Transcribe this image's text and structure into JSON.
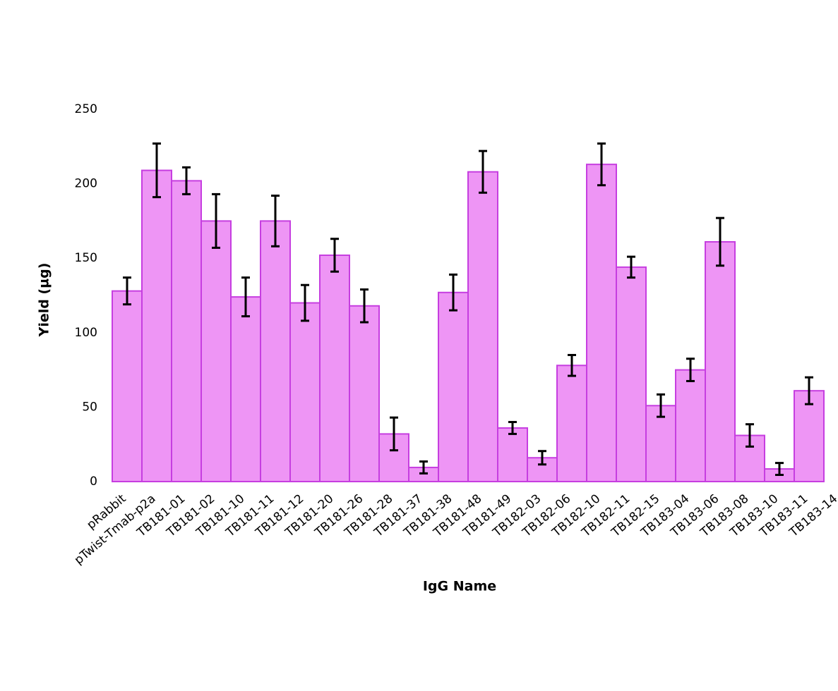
{
  "chart_data": {
    "type": "bar",
    "x_label": "IgG Name",
    "y_label": "Yield (µg)",
    "categories": [
      "pRabbit",
      "pTwist-Tmab-p2a",
      "TB181-01",
      "TB181-02",
      "TB181-10",
      "TB181-11",
      "TB181-12",
      "TB181-20",
      "TB181-26",
      "TB181-28",
      "TB181-37",
      "TB181-38",
      "TB181-48",
      "TB181-49",
      "TB182-03",
      "TB182-06",
      "TB182-10",
      "TB182-11",
      "TB182-15",
      "TB183-04",
      "TB183-06",
      "TB183-08",
      "TB183-10",
      "TB183-11",
      "TB183-14"
    ],
    "values": [
      128,
      209,
      202,
      175,
      124,
      175,
      120,
      152,
      118,
      32,
      9.5,
      127,
      208,
      36,
      16,
      78,
      213,
      144,
      51,
      75,
      161,
      31,
      8.5,
      61,
      null
    ],
    "errors": [
      9,
      18,
      9,
      18,
      13,
      17,
      12,
      11,
      11,
      11,
      4,
      12,
      14,
      4,
      4.5,
      7,
      14,
      7,
      7.5,
      7.5,
      16,
      7.5,
      4,
      9,
      null
    ],
    "color": "#ee95f5",
    "edge_color": "#c63ee0",
    "error_color": "#000000",
    "ylim": [
      0,
      250
    ],
    "yticks": [
      0,
      50,
      100,
      150,
      200,
      250
    ],
    "grid": false
  }
}
